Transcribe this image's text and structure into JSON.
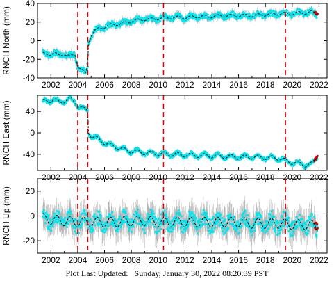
{
  "footer": {
    "label": "Plot Last Updated:",
    "timestamp": "Sunday, January 30, 2022 08:20:39 PST"
  },
  "colors": {
    "data": "#00e5ee",
    "error_bars": "#b0b0b0",
    "model": "#000000",
    "event_lines": "#e00000",
    "recent": "#cc0000"
  },
  "chart_data": [
    {
      "type": "scatter",
      "title": "",
      "xlabel": "",
      "ylabel": "RNCH North (mm)",
      "xlim": [
        2001.0,
        2022.6
      ],
      "ylim": [
        -40,
        40
      ],
      "xticks": [
        2002,
        2004,
        2006,
        2008,
        2010,
        2012,
        2014,
        2016,
        2018,
        2020,
        2022
      ],
      "yticks": [
        -40,
        -20,
        0,
        20,
        40
      ],
      "grid": false,
      "legend": "none",
      "event_lines": [
        2004.0,
        2004.75,
        2010.4,
        2019.5
      ],
      "series": [
        {
          "role": "observed",
          "x": [
            2001.4,
            2001.8,
            2002.2,
            2002.6,
            2003.0,
            2003.4,
            2003.8,
            2004.0,
            2004.2,
            2004.4,
            2004.6,
            2004.75,
            2004.8,
            2005.0,
            2005.3,
            2005.6,
            2006.0,
            2006.5,
            2007.0,
            2007.5,
            2008.0,
            2008.5,
            2009.0,
            2009.5,
            2010.0,
            2010.4,
            2011.0,
            2011.5,
            2012.0,
            2013.0,
            2014.0,
            2015.0,
            2016.0,
            2017.0,
            2018.0,
            2019.0,
            2019.5,
            2020.0,
            2020.5,
            2021.0,
            2021.5,
            2021.9
          ],
          "y": [
            -14,
            -15,
            -13,
            -16,
            -14,
            -17,
            -15,
            -27,
            -30,
            -33,
            -35,
            -25,
            -2,
            6,
            11,
            13,
            15,
            17,
            18,
            19,
            21,
            22,
            23,
            23,
            24,
            24,
            25,
            25,
            25,
            26,
            26,
            27,
            27,
            27,
            28,
            29,
            29,
            29,
            30,
            30,
            31,
            28
          ]
        }
      ]
    },
    {
      "type": "scatter",
      "title": "",
      "xlabel": "",
      "ylabel": "RNCH East (mm)",
      "xlim": [
        2001.0,
        2022.6
      ],
      "ylim": [
        -70,
        70
      ],
      "xticks": [
        2002,
        2004,
        2006,
        2008,
        2010,
        2012,
        2014,
        2016,
        2018,
        2020,
        2022
      ],
      "yticks": [
        -40,
        0,
        40
      ],
      "grid": false,
      "legend": "none",
      "event_lines": [
        2004.0,
        2004.75,
        2010.4,
        2019.5
      ],
      "series": [
        {
          "role": "observed",
          "x": [
            2001.4,
            2001.8,
            2002.2,
            2002.6,
            2003.0,
            2003.4,
            2003.8,
            2004.0,
            2004.3,
            2004.6,
            2004.75,
            2004.8,
            2005.0,
            2005.5,
            2006.0,
            2006.5,
            2007.0,
            2007.5,
            2008.0,
            2009.0,
            2010.0,
            2011.0,
            2012.0,
            2013.0,
            2014.0,
            2015.0,
            2016.0,
            2017.0,
            2018.0,
            2019.0,
            2019.5,
            2020.0,
            2020.5,
            2021.0,
            2021.5,
            2021.9
          ],
          "y": [
            58,
            60,
            62,
            57,
            60,
            63,
            58,
            52,
            46,
            42,
            42,
            2,
            -5,
            -12,
            -18,
            -24,
            -27,
            -32,
            -34,
            -37,
            -39,
            -40,
            -41,
            -42,
            -43,
            -44,
            -45,
            -45,
            -46,
            -47,
            -52,
            -55,
            -57,
            -60,
            -58,
            -42
          ]
        }
      ]
    },
    {
      "type": "scatter",
      "title": "",
      "xlabel": "",
      "ylabel": "RNCH Up (mm)",
      "xlim": [
        2001.0,
        2022.6
      ],
      "ylim": [
        -30,
        30
      ],
      "xticks": [
        2002,
        2004,
        2006,
        2008,
        2010,
        2012,
        2014,
        2016,
        2018,
        2020,
        2022
      ],
      "yticks": [
        -20,
        0,
        20
      ],
      "grid": false,
      "legend": "none",
      "event_lines": [
        2004.0,
        2004.75,
        2010.4,
        2019.5
      ],
      "series": [
        {
          "role": "observed",
          "x": [
            2001.4,
            2002.0,
            2003.0,
            2004.0,
            2005.0,
            2006.0,
            2007.0,
            2008.0,
            2009.0,
            2010.0,
            2011.0,
            2012.0,
            2013.0,
            2014.0,
            2015.0,
            2016.0,
            2017.0,
            2018.0,
            2019.0,
            2020.0,
            2021.0,
            2021.9
          ],
          "y": [
            -2,
            -3,
            -4,
            -5,
            -5,
            -5,
            -5,
            -4,
            -4,
            -5,
            -5,
            -5,
            -5,
            -5,
            -5,
            -5,
            -6,
            -6,
            -6,
            -7,
            -7,
            -8
          ]
        }
      ]
    }
  ]
}
